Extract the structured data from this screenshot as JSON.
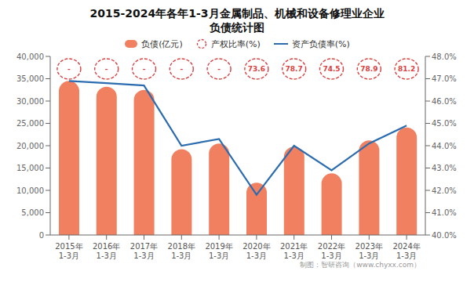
{
  "chart_data": {
    "type": "bar",
    "title": "2015-2024年各年1-3月金属制品、机械和设备修理业企业\n负债统计图",
    "categories": [
      "2015年\n1-3月",
      "2016年\n1-3月",
      "2017年\n1-3月",
      "2018年\n1-3月",
      "2019年\n1-3月",
      "2020年\n1-3月",
      "2021年\n1-3月",
      "2022年\n1-3月",
      "2023年\n1-3月",
      "2024年\n1-3月"
    ],
    "series": [
      {
        "name": "负债(亿元)",
        "type": "bar",
        "color": "#f08060",
        "values": [
          34500,
          33200,
          32500,
          19200,
          20500,
          11700,
          19800,
          13800,
          21200,
          24100
        ]
      },
      {
        "name": "产权比率(%)",
        "type": "label",
        "color": "#d94040",
        "marker": "circle",
        "line_style": "dashed",
        "values": [
          null,
          null,
          null,
          null,
          null,
          73.6,
          78.7,
          74.5,
          78.9,
          81.2
        ],
        "value_labels": [
          "-",
          "-",
          "-",
          "-",
          "-",
          "73.6",
          "78.7",
          "74.5",
          "78.9",
          "81.2"
        ]
      },
      {
        "name": "资产负债率(%)",
        "type": "line",
        "axis": "y2",
        "color": "#2b6cb0",
        "values": [
          46.9,
          46.8,
          46.7,
          44.0,
          44.3,
          41.8,
          44.0,
          42.9,
          44.1,
          44.9
        ]
      }
    ],
    "ylim": [
      0,
      40000
    ],
    "yticks": [
      0,
      {
        "value": 5000,
        "label": "5,000"
      },
      {
        "value": 10000,
        "label": "10,000"
      },
      {
        "value": 15000,
        "label": "15,000"
      },
      {
        "value": 20000,
        "label": "20,000"
      },
      {
        "value": 25000,
        "label": "25,000"
      },
      {
        "value": 30000,
        "label": "30,000"
      },
      {
        "value": 35000,
        "label": "35,000"
      },
      {
        "value": 40000,
        "label": "40,000"
      }
    ],
    "y2lim": [
      40.0,
      48.0
    ],
    "y2ticks": [
      {
        "value": 40.0,
        "label": "40.0%"
      },
      {
        "value": 41.0,
        "label": "41.0%"
      },
      {
        "value": 42.0,
        "label": "42.0%"
      },
      {
        "value": 43.0,
        "label": "43.0%"
      },
      {
        "value": 44.0,
        "label": "44.0%"
      },
      {
        "value": 45.0,
        "label": "45.0%"
      },
      {
        "value": 46.0,
        "label": "46.0%"
      },
      {
        "value": 47.0,
        "label": "47.0%"
      },
      {
        "value": 48.0,
        "label": "48.0%"
      }
    ],
    "grid": false,
    "legend": "top",
    "annotations": [
      "制图：智研咨询（www.chyxx.com）"
    ]
  }
}
